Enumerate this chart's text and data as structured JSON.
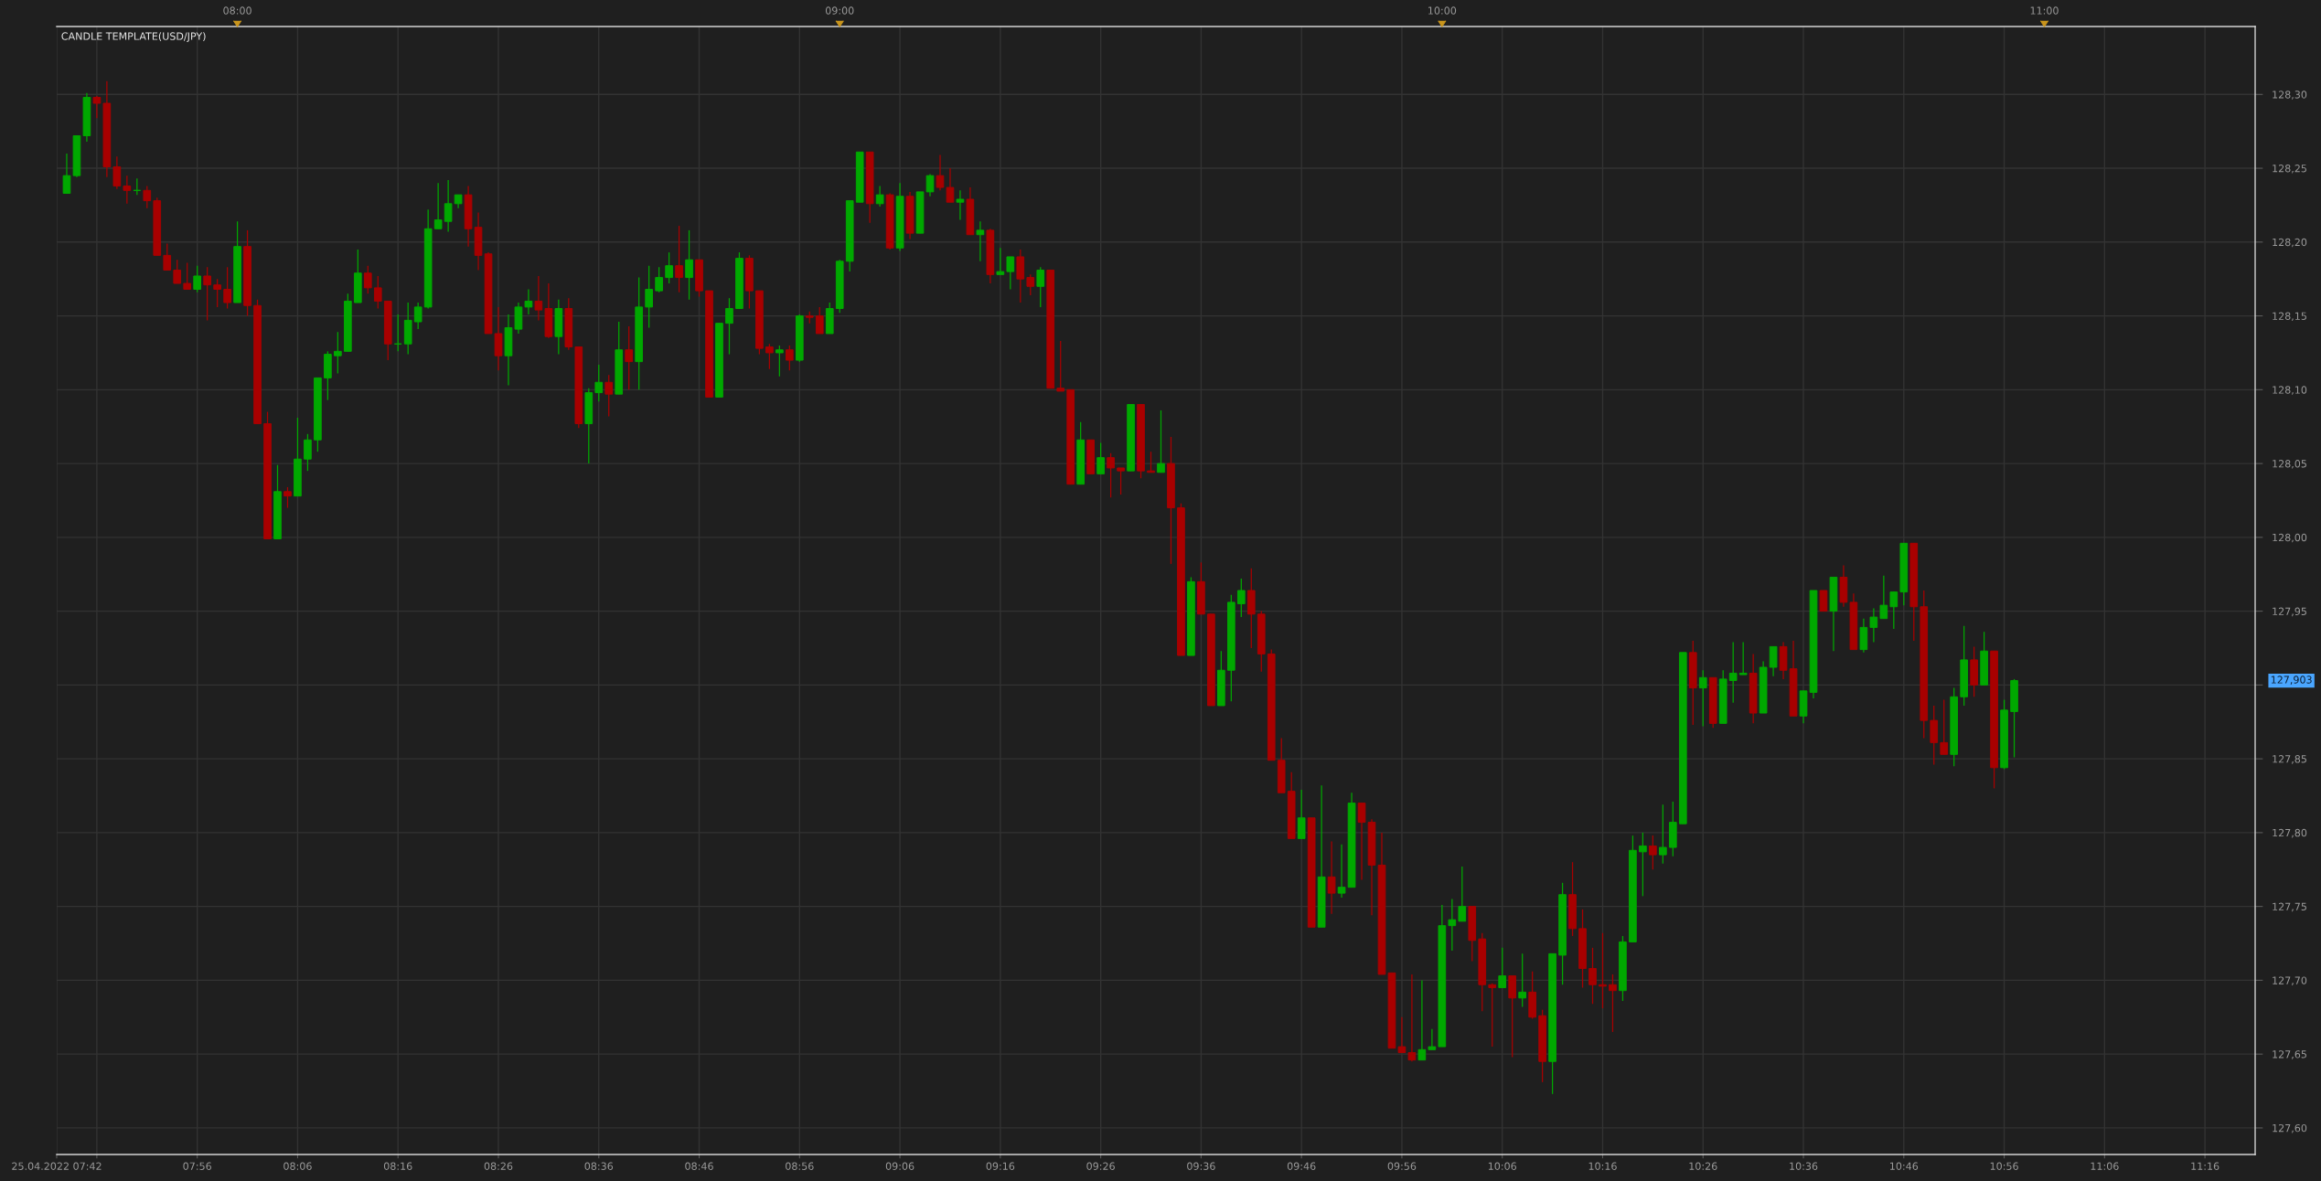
{
  "chart_data": {
    "type": "candlestick",
    "title": "CANDLE TEMPLATE(USD/JPY)",
    "x": [
      "2022-04-25T07:43",
      "2022-04-25T07:44",
      "2022-04-25T07:45",
      "2022-04-25T07:46",
      "2022-04-25T07:47",
      "2022-04-25T07:48",
      "2022-04-25T07:49",
      "2022-04-25T07:50",
      "2022-04-25T07:51",
      "2022-04-25T07:52",
      "2022-04-25T07:53",
      "2022-04-25T07:54",
      "2022-04-25T07:55",
      "2022-04-25T07:56",
      "2022-04-25T07:57",
      "2022-04-25T07:58",
      "2022-04-25T07:59",
      "2022-04-25T08:00",
      "2022-04-25T08:01",
      "2022-04-25T08:02",
      "2022-04-25T08:03",
      "2022-04-25T08:04",
      "2022-04-25T08:05",
      "2022-04-25T08:06",
      "2022-04-25T08:07",
      "2022-04-25T08:08",
      "2022-04-25T08:09",
      "2022-04-25T08:10",
      "2022-04-25T08:11",
      "2022-04-25T08:12",
      "2022-04-25T08:13",
      "2022-04-25T08:14",
      "2022-04-25T08:15",
      "2022-04-25T08:16",
      "2022-04-25T08:17",
      "2022-04-25T08:18",
      "2022-04-25T08:19",
      "2022-04-25T08:20",
      "2022-04-25T08:21",
      "2022-04-25T08:22",
      "2022-04-25T08:23",
      "2022-04-25T08:24",
      "2022-04-25T08:25",
      "2022-04-25T08:26",
      "2022-04-25T08:27",
      "2022-04-25T08:28",
      "2022-04-25T08:29",
      "2022-04-25T08:30",
      "2022-04-25T08:31",
      "2022-04-25T08:32",
      "2022-04-25T08:33",
      "2022-04-25T08:34",
      "2022-04-25T08:35",
      "2022-04-25T08:36",
      "2022-04-25T08:37",
      "2022-04-25T08:38",
      "2022-04-25T08:39",
      "2022-04-25T08:40",
      "2022-04-25T08:41",
      "2022-04-25T08:42",
      "2022-04-25T08:43",
      "2022-04-25T08:44",
      "2022-04-25T08:45",
      "2022-04-25T08:46",
      "2022-04-25T08:47",
      "2022-04-25T08:48",
      "2022-04-25T08:49",
      "2022-04-25T08:50",
      "2022-04-25T08:51",
      "2022-04-25T08:52",
      "2022-04-25T08:53",
      "2022-04-25T08:54",
      "2022-04-25T08:55",
      "2022-04-25T08:56",
      "2022-04-25T08:57",
      "2022-04-25T08:58",
      "2022-04-25T08:59",
      "2022-04-25T09:00",
      "2022-04-25T09:01",
      "2022-04-25T09:02",
      "2022-04-25T09:03",
      "2022-04-25T09:04",
      "2022-04-25T09:05",
      "2022-04-25T09:06",
      "2022-04-25T09:07",
      "2022-04-25T09:08",
      "2022-04-25T09:09",
      "2022-04-25T09:10",
      "2022-04-25T09:11",
      "2022-04-25T09:12",
      "2022-04-25T09:13",
      "2022-04-25T09:14",
      "2022-04-25T09:15",
      "2022-04-25T09:16",
      "2022-04-25T09:17",
      "2022-04-25T09:18",
      "2022-04-25T09:19",
      "2022-04-25T09:20",
      "2022-04-25T09:21",
      "2022-04-25T09:22",
      "2022-04-25T09:23",
      "2022-04-25T09:24",
      "2022-04-25T09:25",
      "2022-04-25T09:26",
      "2022-04-25T09:27",
      "2022-04-25T09:28",
      "2022-04-25T09:29",
      "2022-04-25T09:30",
      "2022-04-25T09:31",
      "2022-04-25T09:32",
      "2022-04-25T09:33",
      "2022-04-25T09:34",
      "2022-04-25T09:35",
      "2022-04-25T09:36",
      "2022-04-25T09:37",
      "2022-04-25T09:38",
      "2022-04-25T09:39",
      "2022-04-25T09:40",
      "2022-04-25T09:41",
      "2022-04-25T09:42",
      "2022-04-25T09:43",
      "2022-04-25T09:44",
      "2022-04-25T09:45",
      "2022-04-25T09:46",
      "2022-04-25T09:47",
      "2022-04-25T09:48",
      "2022-04-25T09:49",
      "2022-04-25T09:50",
      "2022-04-25T09:51",
      "2022-04-25T09:52",
      "2022-04-25T09:53",
      "2022-04-25T09:54",
      "2022-04-25T09:55",
      "2022-04-25T09:56",
      "2022-04-25T09:57",
      "2022-04-25T09:58",
      "2022-04-25T09:59",
      "2022-04-25T10:00",
      "2022-04-25T10:01",
      "2022-04-25T10:02",
      "2022-04-25T10:03",
      "2022-04-25T10:04",
      "2022-04-25T10:05",
      "2022-04-25T10:06",
      "2022-04-25T10:07",
      "2022-04-25T10:08",
      "2022-04-25T10:09",
      "2022-04-25T10:10",
      "2022-04-25T10:11",
      "2022-04-25T10:12",
      "2022-04-25T10:13",
      "2022-04-25T10:14",
      "2022-04-25T10:15",
      "2022-04-25T10:16",
      "2022-04-25T10:17",
      "2022-04-25T10:18",
      "2022-04-25T10:19",
      "2022-04-25T10:20",
      "2022-04-25T10:21",
      "2022-04-25T10:22",
      "2022-04-25T10:23",
      "2022-04-25T10:24",
      "2022-04-25T10:25",
      "2022-04-25T10:26",
      "2022-04-25T10:27",
      "2022-04-25T10:28",
      "2022-04-25T10:29",
      "2022-04-25T10:30",
      "2022-04-25T10:31",
      "2022-04-25T10:32",
      "2022-04-25T10:33",
      "2022-04-25T10:34",
      "2022-04-25T10:35",
      "2022-04-25T10:36",
      "2022-04-25T10:37",
      "2022-04-25T10:38",
      "2022-04-25T10:39",
      "2022-04-25T10:40",
      "2022-04-25T10:41",
      "2022-04-25T10:42",
      "2022-04-25T10:43",
      "2022-04-25T10:44",
      "2022-04-25T10:45",
      "2022-04-25T10:46",
      "2022-04-25T10:47",
      "2022-04-25T10:48",
      "2022-04-25T10:49",
      "2022-04-25T10:50",
      "2022-04-25T10:51",
      "2022-04-25T10:52",
      "2022-04-25T10:53",
      "2022-04-25T10:54",
      "2022-04-25T10:55",
      "2022-04-25T10:56",
      "2022-04-25T10:57"
    ],
    "ohlc": [
      [
        128.233,
        128.26,
        128.233,
        128.245
      ],
      [
        128.245,
        128.272,
        128.244,
        128.272
      ],
      [
        128.272,
        128.301,
        128.268,
        128.298
      ],
      [
        128.298,
        128.299,
        128.284,
        128.294
      ],
      [
        128.294,
        128.309,
        128.244,
        128.251
      ],
      [
        128.251,
        128.258,
        128.236,
        128.238
      ],
      [
        128.238,
        128.245,
        128.226,
        128.235
      ],
      [
        128.235,
        128.243,
        128.232,
        128.235
      ],
      [
        128.235,
        128.238,
        128.223,
        128.228
      ],
      [
        128.228,
        128.23,
        128.191,
        128.191
      ],
      [
        128.191,
        128.199,
        128.181,
        128.181
      ],
      [
        128.181,
        128.188,
        128.172,
        128.172
      ],
      [
        128.172,
        128.186,
        128.168,
        128.168
      ],
      [
        128.168,
        128.184,
        128.166,
        128.177
      ],
      [
        128.177,
        128.183,
        128.147,
        128.171
      ],
      [
        128.171,
        128.175,
        128.156,
        128.168
      ],
      [
        128.168,
        128.183,
        128.155,
        128.159
      ],
      [
        128.159,
        128.214,
        128.159,
        128.197
      ],
      [
        128.197,
        128.208,
        128.15,
        128.157
      ],
      [
        128.157,
        128.161,
        128.077,
        128.077
      ],
      [
        128.077,
        128.085,
        127.999,
        127.999
      ],
      [
        127.999,
        128.049,
        127.999,
        128.031
      ],
      [
        128.031,
        128.034,
        128.02,
        128.028
      ],
      [
        128.028,
        128.081,
        128.028,
        128.053
      ],
      [
        128.053,
        128.07,
        128.045,
        128.066
      ],
      [
        128.066,
        128.108,
        128.058,
        128.108
      ],
      [
        128.108,
        128.126,
        128.093,
        128.124
      ],
      [
        128.123,
        128.139,
        128.111,
        128.126
      ],
      [
        128.126,
        128.165,
        128.126,
        128.16
      ],
      [
        128.159,
        128.195,
        128.159,
        128.179
      ],
      [
        128.179,
        128.184,
        128.165,
        128.169
      ],
      [
        128.169,
        128.177,
        128.155,
        128.16
      ],
      [
        128.16,
        128.16,
        128.12,
        128.131
      ],
      [
        128.131,
        128.151,
        128.126,
        128.131
      ],
      [
        128.131,
        128.159,
        128.124,
        128.147
      ],
      [
        128.146,
        128.159,
        128.141,
        128.156
      ],
      [
        128.156,
        128.222,
        128.155,
        128.209
      ],
      [
        128.209,
        128.24,
        128.209,
        128.215
      ],
      [
        128.214,
        128.242,
        128.207,
        128.226
      ],
      [
        128.226,
        128.232,
        128.223,
        128.232
      ],
      [
        128.232,
        128.238,
        128.197,
        128.209
      ],
      [
        128.21,
        128.22,
        128.181,
        128.191
      ],
      [
        128.192,
        128.193,
        128.138,
        128.138
      ],
      [
        128.138,
        128.156,
        128.113,
        128.123
      ],
      [
        128.123,
        128.151,
        128.103,
        128.142
      ],
      [
        128.141,
        128.159,
        128.138,
        128.156
      ],
      [
        128.156,
        128.168,
        128.151,
        128.16
      ],
      [
        128.16,
        128.177,
        128.147,
        128.154
      ],
      [
        128.155,
        128.172,
        128.135,
        128.136
      ],
      [
        128.136,
        128.161,
        128.124,
        128.155
      ],
      [
        128.155,
        128.162,
        128.127,
        128.129
      ],
      [
        128.129,
        128.129,
        128.074,
        128.077
      ],
      [
        128.077,
        128.101,
        128.05,
        128.098
      ],
      [
        128.098,
        128.117,
        128.092,
        128.105
      ],
      [
        128.105,
        128.11,
        128.082,
        128.097
      ],
      [
        128.097,
        128.146,
        128.097,
        128.127
      ],
      [
        128.127,
        128.143,
        128.1,
        128.119
      ],
      [
        128.119,
        128.176,
        128.1,
        128.156
      ],
      [
        128.156,
        128.184,
        128.142,
        128.168
      ],
      [
        128.167,
        128.183,
        128.166,
        128.176
      ],
      [
        128.176,
        128.193,
        128.172,
        128.184
      ],
      [
        128.184,
        128.211,
        128.166,
        128.176
      ],
      [
        128.176,
        128.208,
        128.161,
        128.188
      ],
      [
        128.188,
        128.188,
        128.163,
        128.167
      ],
      [
        128.167,
        128.167,
        128.095,
        128.095
      ],
      [
        128.095,
        128.145,
        128.095,
        128.145
      ],
      [
        128.145,
        128.162,
        128.124,
        128.155
      ],
      [
        128.155,
        128.193,
        128.155,
        128.189
      ],
      [
        128.189,
        128.191,
        128.155,
        128.167
      ],
      [
        128.167,
        128.167,
        128.124,
        128.128
      ],
      [
        128.129,
        128.131,
        128.114,
        128.125
      ],
      [
        128.125,
        128.13,
        128.109,
        128.127
      ],
      [
        128.127,
        128.13,
        128.113,
        128.12
      ],
      [
        128.12,
        128.151,
        128.119,
        128.15
      ],
      [
        128.15,
        128.153,
        128.145,
        128.149
      ],
      [
        128.15,
        128.156,
        128.138,
        128.138
      ],
      [
        128.138,
        128.159,
        128.138,
        128.155
      ],
      [
        128.155,
        128.188,
        128.152,
        128.187
      ],
      [
        128.187,
        128.228,
        128.18,
        128.228
      ],
      [
        128.227,
        128.261,
        128.227,
        128.261
      ],
      [
        128.261,
        128.261,
        128.213,
        128.226
      ],
      [
        128.226,
        128.238,
        128.224,
        128.232
      ],
      [
        128.232,
        128.233,
        128.195,
        128.196
      ],
      [
        128.196,
        128.24,
        128.194,
        128.231
      ],
      [
        128.231,
        128.234,
        128.202,
        128.206
      ],
      [
        128.206,
        128.234,
        128.206,
        128.234
      ],
      [
        128.234,
        128.246,
        128.231,
        128.245
      ],
      [
        128.245,
        128.259,
        128.235,
        128.237
      ],
      [
        128.237,
        128.25,
        128.227,
        128.227
      ],
      [
        128.227,
        128.235,
        128.215,
        128.229
      ],
      [
        128.229,
        128.237,
        128.205,
        128.205
      ],
      [
        128.205,
        128.214,
        128.187,
        128.208
      ],
      [
        128.208,
        128.209,
        128.172,
        128.178
      ],
      [
        128.178,
        128.196,
        128.178,
        128.18
      ],
      [
        128.18,
        128.19,
        128.168,
        128.19
      ],
      [
        128.19,
        128.195,
        128.159,
        128.175
      ],
      [
        128.176,
        128.178,
        128.164,
        128.17
      ],
      [
        128.17,
        128.183,
        128.156,
        128.181
      ],
      [
        128.181,
        128.181,
        128.101,
        128.101
      ],
      [
        128.101,
        128.133,
        128.099,
        128.099
      ],
      [
        128.1,
        128.1,
        128.036,
        128.036
      ],
      [
        128.036,
        128.078,
        128.036,
        128.066
      ],
      [
        128.066,
        128.066,
        128.043,
        128.043
      ],
      [
        128.043,
        128.064,
        128.043,
        128.054
      ],
      [
        128.054,
        128.057,
        128.027,
        128.047
      ],
      [
        128.047,
        128.047,
        128.029,
        128.045
      ],
      [
        128.045,
        128.09,
        128.045,
        128.09
      ],
      [
        128.09,
        128.09,
        128.04,
        128.045
      ],
      [
        128.045,
        128.058,
        128.044,
        128.044
      ],
      [
        128.044,
        128.086,
        128.044,
        128.05
      ],
      [
        128.05,
        128.068,
        127.982,
        128.02
      ],
      [
        128.02,
        128.023,
        127.92,
        127.92
      ],
      [
        127.92,
        127.973,
        127.92,
        127.97
      ],
      [
        127.97,
        127.983,
        127.948,
        127.948
      ],
      [
        127.948,
        127.948,
        127.886,
        127.886
      ],
      [
        127.886,
        127.923,
        127.886,
        127.91
      ],
      [
        127.91,
        127.961,
        127.889,
        127.956
      ],
      [
        127.955,
        127.972,
        127.946,
        127.964
      ],
      [
        127.964,
        127.979,
        127.925,
        127.948
      ],
      [
        127.948,
        127.95,
        127.909,
        127.921
      ],
      [
        127.921,
        127.924,
        127.849,
        127.849
      ],
      [
        127.849,
        127.864,
        127.827,
        127.827
      ],
      [
        127.828,
        127.841,
        127.796,
        127.796
      ],
      [
        127.796,
        127.829,
        127.796,
        127.81
      ],
      [
        127.81,
        127.81,
        127.736,
        127.736
      ],
      [
        127.736,
        127.832,
        127.736,
        127.77
      ],
      [
        127.77,
        127.794,
        127.745,
        127.759
      ],
      [
        127.759,
        127.792,
        127.756,
        127.763
      ],
      [
        127.763,
        127.827,
        127.763,
        127.82
      ],
      [
        127.82,
        127.82,
        127.768,
        127.807
      ],
      [
        127.807,
        127.809,
        127.744,
        127.778
      ],
      [
        127.778,
        127.8,
        127.704,
        127.704
      ],
      [
        127.705,
        127.705,
        127.654,
        127.654
      ],
      [
        127.655,
        127.675,
        127.651,
        127.651
      ],
      [
        127.651,
        127.704,
        127.645,
        127.646
      ],
      [
        127.646,
        127.7,
        127.646,
        127.653
      ],
      [
        127.653,
        127.667,
        127.653,
        127.655
      ],
      [
        127.655,
        127.751,
        127.655,
        127.737
      ],
      [
        127.737,
        127.755,
        127.72,
        127.741
      ],
      [
        127.74,
        127.777,
        127.74,
        127.75
      ],
      [
        127.75,
        127.75,
        127.713,
        127.727
      ],
      [
        127.728,
        127.732,
        127.679,
        127.697
      ],
      [
        127.697,
        127.698,
        127.655,
        127.695
      ],
      [
        127.695,
        127.722,
        127.695,
        127.703
      ],
      [
        127.703,
        127.703,
        127.648,
        127.688
      ],
      [
        127.688,
        127.718,
        127.682,
        127.692
      ],
      [
        127.692,
        127.706,
        127.674,
        127.675
      ],
      [
        127.676,
        127.68,
        127.631,
        127.645
      ],
      [
        127.645,
        127.718,
        127.623,
        127.718
      ],
      [
        127.717,
        127.766,
        127.697,
        127.758
      ],
      [
        127.758,
        127.78,
        127.73,
        127.735
      ],
      [
        127.735,
        127.748,
        127.695,
        127.708
      ],
      [
        127.708,
        127.722,
        127.684,
        127.697
      ],
      [
        127.697,
        127.732,
        127.681,
        127.696
      ],
      [
        127.697,
        127.704,
        127.665,
        127.693
      ],
      [
        127.693,
        127.73,
        127.686,
        127.726
      ],
      [
        127.726,
        127.798,
        127.726,
        127.788
      ],
      [
        127.787,
        127.8,
        127.757,
        127.791
      ],
      [
        127.791,
        127.798,
        127.775,
        127.785
      ],
      [
        127.785,
        127.819,
        127.779,
        127.79
      ],
      [
        127.79,
        127.821,
        127.784,
        127.807
      ],
      [
        127.806,
        127.922,
        127.806,
        127.922
      ],
      [
        127.922,
        127.93,
        127.873,
        127.898
      ],
      [
        127.898,
        127.91,
        127.872,
        127.905
      ],
      [
        127.905,
        127.905,
        127.871,
        127.874
      ],
      [
        127.874,
        127.91,
        127.874,
        127.904
      ],
      [
        127.903,
        127.929,
        127.888,
        127.908
      ],
      [
        127.907,
        127.929,
        127.907,
        127.908
      ],
      [
        127.908,
        127.921,
        127.874,
        127.881
      ],
      [
        127.881,
        127.916,
        127.881,
        127.912
      ],
      [
        127.912,
        127.926,
        127.906,
        127.926
      ],
      [
        127.926,
        127.929,
        127.904,
        127.91
      ],
      [
        127.911,
        127.93,
        127.879,
        127.879
      ],
      [
        127.879,
        127.896,
        127.874,
        127.896
      ],
      [
        127.895,
        127.964,
        127.891,
        127.964
      ],
      [
        127.964,
        127.964,
        127.95,
        127.95
      ],
      [
        127.95,
        127.973,
        127.923,
        127.973
      ],
      [
        127.973,
        127.981,
        127.953,
        127.956
      ],
      [
        127.956,
        127.962,
        127.924,
        127.924
      ],
      [
        127.924,
        127.945,
        127.922,
        127.939
      ],
      [
        127.939,
        127.952,
        127.929,
        127.946
      ],
      [
        127.945,
        127.974,
        127.945,
        127.954
      ],
      [
        127.953,
        127.963,
        127.938,
        127.963
      ],
      [
        127.963,
        127.996,
        127.954,
        127.996
      ],
      [
        127.996,
        127.996,
        127.93,
        127.953
      ],
      [
        127.953,
        127.964,
        127.864,
        127.876
      ],
      [
        127.876,
        127.886,
        127.846,
        127.861
      ],
      [
        127.861,
        127.89,
        127.853,
        127.853
      ],
      [
        127.853,
        127.898,
        127.845,
        127.892
      ],
      [
        127.892,
        127.94,
        127.886,
        127.917
      ],
      [
        127.917,
        127.926,
        127.892,
        127.9
      ],
      [
        127.9,
        127.936,
        127.9,
        127.923
      ],
      [
        127.923,
        127.923,
        127.83,
        127.844
      ],
      [
        127.844,
        127.89,
        127.843,
        127.883
      ],
      [
        127.882,
        127.904,
        127.851,
        127.903
      ]
    ],
    "colors": [
      "#00a800",
      "#00a800",
      "#00a800",
      "#a80000",
      "#a80000",
      "#a80000",
      "#a80000",
      "#00a800",
      "#a80000",
      "#a80000",
      "#a80000",
      "#a80000",
      "#a80000",
      "#00a800",
      "#a80000",
      "#a80000",
      "#a80000",
      "#00a800",
      "#a80000",
      "#a80000",
      "#a80000",
      "#00a800",
      "#a80000",
      "#00a800",
      "#00a800",
      "#00a800",
      "#00a800",
      "#00a800",
      "#00a800",
      "#00a800",
      "#a80000",
      "#a80000",
      "#a80000",
      "#00a800",
      "#00a800",
      "#00a800",
      "#00a800",
      "#00a800",
      "#00a800",
      "#00a800",
      "#a80000",
      "#a80000",
      "#a80000",
      "#a80000",
      "#00a800",
      "#00a800",
      "#00a800",
      "#a80000",
      "#a80000",
      "#00a800",
      "#a80000",
      "#a80000",
      "#00a800",
      "#00a800",
      "#a80000",
      "#00a800",
      "#a80000",
      "#00a800",
      "#00a800",
      "#00a800",
      "#00a800",
      "#a80000",
      "#00a800",
      "#a80000",
      "#a80000",
      "#00a800",
      "#00a800",
      "#00a800",
      "#a80000",
      "#a80000",
      "#a80000",
      "#00a800",
      "#a80000",
      "#00a800",
      "#a80000",
      "#a80000",
      "#00a800",
      "#00a800",
      "#00a800",
      "#00a800",
      "#a80000",
      "#00a800",
      "#a80000",
      "#00a800",
      "#a80000",
      "#00a800",
      "#00a800",
      "#a80000",
      "#a80000",
      "#00a800",
      "#a80000",
      "#00a800",
      "#a80000",
      "#00a800",
      "#00a800",
      "#a80000",
      "#a80000",
      "#00a800",
      "#a80000",
      "#a80000",
      "#a80000",
      "#00a800",
      "#a80000",
      "#00a800",
      "#a80000",
      "#a80000",
      "#00a800",
      "#a80000",
      "#a80000",
      "#00a800",
      "#a80000",
      "#a80000",
      "#00a800",
      "#a80000",
      "#a80000",
      "#00a800",
      "#00a800",
      "#00a800",
      "#a80000",
      "#a80000",
      "#a80000",
      "#a80000",
      "#a80000",
      "#00a800",
      "#a80000",
      "#00a800",
      "#a80000",
      "#00a800",
      "#00a800",
      "#a80000",
      "#a80000",
      "#a80000",
      "#a80000",
      "#a80000",
      "#a80000",
      "#00a800",
      "#00a800",
      "#00a800",
      "#00a800",
      "#00a800",
      "#a80000",
      "#a80000",
      "#a80000",
      "#00a800",
      "#a80000",
      "#00a800",
      "#a80000",
      "#a80000",
      "#00a800",
      "#00a800",
      "#a80000",
      "#a80000",
      "#a80000",
      "#a80000",
      "#a80000",
      "#00a800",
      "#00a800",
      "#00a800",
      "#a80000",
      "#00a800",
      "#00a800",
      "#00a800",
      "#a80000",
      "#00a800",
      "#a80000",
      "#00a800",
      "#00a800",
      "#00a800",
      "#a80000",
      "#00a800",
      "#00a800",
      "#a80000",
      "#a80000",
      "#00a800",
      "#00a800",
      "#a80000",
      "#00a800",
      "#a80000",
      "#a80000",
      "#00a800",
      "#00a800",
      "#00a800",
      "#00a800",
      "#00a800",
      "#a80000",
      "#a80000",
      "#a80000",
      "#a80000",
      "#00a800",
      "#00a800",
      "#a80000",
      "#00a800",
      "#a80000",
      "#00a800",
      "#00a800"
    ],
    "xlim": [
      "2022-04-25T07:42",
      "2022-04-25T11:21"
    ],
    "xticks": [
      {
        "value": "2022-04-25T07:42",
        "label": "25.04.2022 07:42"
      },
      {
        "value": "2022-04-25T07:46",
        "label": null
      },
      {
        "value": "2022-04-25T07:56",
        "label": "07:56"
      },
      {
        "value": "2022-04-25T08:06",
        "label": "08:06"
      },
      {
        "value": "2022-04-25T08:16",
        "label": "08:16"
      },
      {
        "value": "2022-04-25T08:26",
        "label": "08:26"
      },
      {
        "value": "2022-04-25T08:36",
        "label": "08:36"
      },
      {
        "value": "2022-04-25T08:46",
        "label": "08:46"
      },
      {
        "value": "2022-04-25T08:56",
        "label": "08:56"
      },
      {
        "value": "2022-04-25T09:06",
        "label": "09:06"
      },
      {
        "value": "2022-04-25T09:16",
        "label": "09:16"
      },
      {
        "value": "2022-04-25T09:26",
        "label": "09:26"
      },
      {
        "value": "2022-04-25T09:36",
        "label": "09:36"
      },
      {
        "value": "2022-04-25T09:46",
        "label": "09:46"
      },
      {
        "value": "2022-04-25T09:56",
        "label": "09:56"
      },
      {
        "value": "2022-04-25T10:06",
        "label": "10:06"
      },
      {
        "value": "2022-04-25T10:16",
        "label": "10:16"
      },
      {
        "value": "2022-04-25T10:26",
        "label": "10:26"
      },
      {
        "value": "2022-04-25T10:36",
        "label": "10:36"
      },
      {
        "value": "2022-04-25T10:46",
        "label": "10:46"
      },
      {
        "value": "2022-04-25T10:56",
        "label": "10:56"
      },
      {
        "value": "2022-04-25T11:06",
        "label": "11:06"
      },
      {
        "value": "2022-04-25T11:16",
        "label": "11:16"
      }
    ],
    "x2lim": [
      "2022-04-25T07:42",
      "2022-04-25T11:21"
    ],
    "x2ticks": [
      {
        "value": "2022-04-25T08:00",
        "label": "08:00"
      },
      {
        "value": "2022-04-25T09:00",
        "label": "09:00"
      },
      {
        "value": "2022-04-25T10:00",
        "label": "10:00"
      },
      {
        "value": "2022-04-25T11:00",
        "label": "11:00"
      }
    ],
    "ylim": [
      127.582,
      128.346
    ],
    "yticks": [
      {
        "value": 127.6,
        "label": "127,60"
      },
      {
        "value": 127.65,
        "label": "127,65"
      },
      {
        "value": 127.7,
        "label": "127,70"
      },
      {
        "value": 127.75,
        "label": "127,75"
      },
      {
        "value": 127.8,
        "label": "127,80"
      },
      {
        "value": 127.85,
        "label": "127,85"
      },
      {
        "value": 127.9,
        "label": null
      },
      {
        "value": 127.95,
        "label": "127,95"
      },
      {
        "value": 128.0,
        "label": "128,00"
      },
      {
        "value": 128.05,
        "label": "128,05"
      },
      {
        "value": 128.1,
        "label": "128,10"
      },
      {
        "value": 128.15,
        "label": "128,15"
      },
      {
        "value": 128.2,
        "label": "128,20"
      },
      {
        "value": 128.25,
        "label": "128,25"
      },
      {
        "value": 128.3,
        "label": "128,30"
      }
    ],
    "annotations": [
      "127,903"
    ],
    "grid": true
  }
}
